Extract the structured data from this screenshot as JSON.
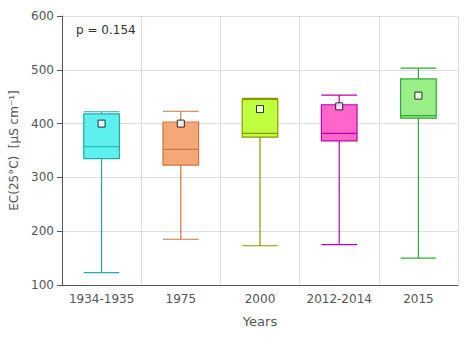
{
  "chart_data": {
    "type": "box",
    "categories": [
      "1934-1935",
      "1975",
      "2000",
      "2012-2014",
      "2015"
    ],
    "whisker_low": [
      123,
      185,
      173,
      175,
      150
    ],
    "q1": [
      335,
      323,
      375,
      368,
      410
    ],
    "median": [
      357,
      352,
      382,
      382,
      415
    ],
    "q3": [
      418,
      403,
      445,
      435,
      483
    ],
    "whisker_high": [
      422,
      423,
      447,
      453,
      503
    ],
    "mean": [
      400,
      400,
      427,
      432,
      452
    ],
    "colors": [
      "#5EEFEF",
      "#F4A878",
      "#BFFF40",
      "#FF66CC",
      "#99EE88"
    ],
    "edge_colors": [
      "#20AAAA",
      "#CC7744",
      "#889900",
      "#BB00AA",
      "#33AA33"
    ],
    "xlabel": "Years",
    "ylabel": "EC(25°C)  [μS cm⁻¹]",
    "annotation": "p = 0.154",
    "ylim": [
      100,
      600
    ],
    "yticks": [
      100,
      200,
      300,
      400,
      500,
      600
    ],
    "grid": true
  }
}
